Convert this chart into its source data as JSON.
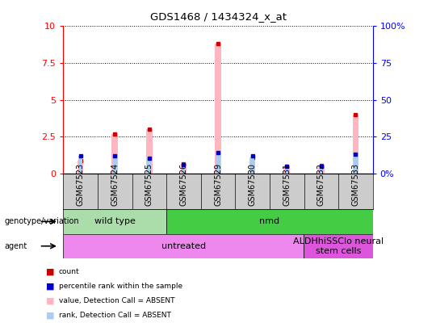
{
  "title": "GDS1468 / 1434324_x_at",
  "samples": [
    "GSM67523",
    "GSM67524",
    "GSM67525",
    "GSM67526",
    "GSM67529",
    "GSM67530",
    "GSM67531",
    "GSM67532",
    "GSM67533"
  ],
  "pink_bars": [
    0.85,
    2.65,
    3.0,
    0.65,
    8.8,
    1.1,
    0.45,
    0.55,
    4.0
  ],
  "blue_bars_pct": [
    12,
    12,
    10,
    6,
    14,
    12,
    5,
    5,
    13
  ],
  "ylim": [
    0,
    10
  ],
  "yticks": [
    0,
    2.5,
    5,
    7.5,
    10
  ],
  "ytick_labels": [
    "0",
    "2.5",
    "5",
    "7.5",
    "10"
  ],
  "y2lim": [
    0,
    100
  ],
  "y2ticks": [
    0,
    25,
    50,
    75,
    100
  ],
  "y2tick_labels": [
    "0%",
    "25",
    "50",
    "75",
    "100%"
  ],
  "genotype_groups": [
    {
      "label": "wild type",
      "start": 0,
      "end": 3,
      "color": "#AADDAA"
    },
    {
      "label": "nmd",
      "start": 3,
      "end": 9,
      "color": "#44CC44"
    }
  ],
  "agent_groups": [
    {
      "label": "untreated",
      "start": 0,
      "end": 7,
      "color": "#EE88EE"
    },
    {
      "label": "ALDHhiSSClo neural\nstem cells",
      "start": 7,
      "end": 9,
      "color": "#DD55DD"
    }
  ],
  "legend_items": [
    {
      "color": "#CC0000",
      "label": "count"
    },
    {
      "color": "#0000CC",
      "label": "percentile rank within the sample"
    },
    {
      "color": "#FFB6C1",
      "label": "value, Detection Call = ABSENT"
    },
    {
      "color": "#AACCEE",
      "label": "rank, Detection Call = ABSENT"
    }
  ],
  "left_label_genotype": "genotype/variation",
  "left_label_agent": "agent",
  "pink_color": "#FFB6C1",
  "blue_bar_color": "#AACCEE",
  "red_color": "#CC0000",
  "dark_blue_color": "#0000CC",
  "pink_bar_width": 0.18,
  "blue_bar_width": 0.12,
  "bg_color": "#FFFFFF",
  "sample_bg_color": "#CCCCCC"
}
